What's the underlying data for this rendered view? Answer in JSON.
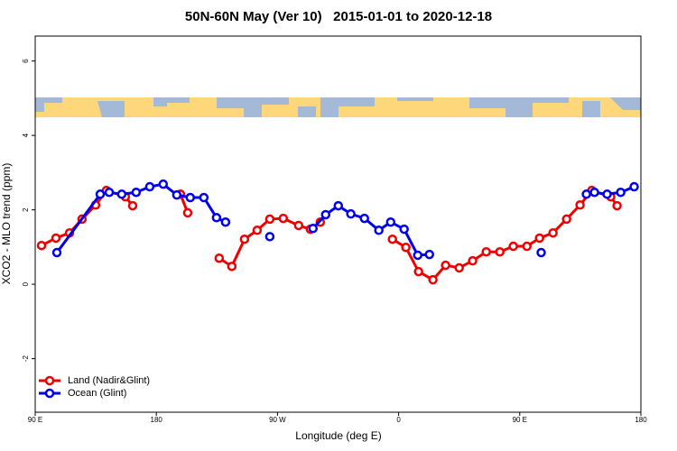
{
  "chart_data": {
    "type": "line",
    "title": "50N-60N May (Ver 10)   2015-01-01 to 2020-12-18",
    "x_label": "Longitude (deg E)",
    "y_label": "XCO2 - MLO trend (ppm)",
    "xlim": [
      90,
      540
    ],
    "ylim": [
      -3.44,
      6.67
    ],
    "xticks": [
      {
        "value": 90,
        "label": "90 E"
      },
      {
        "value": 180,
        "label": "180"
      },
      {
        "value": 270,
        "label": "90 W"
      },
      {
        "value": 360,
        "label": "0"
      },
      {
        "value": 450,
        "label": "90 E"
      },
      {
        "value": 540,
        "label": "180"
      }
    ],
    "yticks": [
      -2,
      0,
      2,
      4,
      6
    ],
    "legend_position": "bottom-left",
    "series": [
      {
        "name": "Land (Nadir&Glint)",
        "color": "#ee0000",
        "x": [
          94.7,
          105.4,
          115.5,
          124.8,
          134.9,
          142.9,
          157.0,
          162.4,
          null,
          197.9,
          203.3,
          null,
          226.7,
          236.1,
          245.5,
          254.9,
          264.3,
          274.3,
          285.7,
          294.4,
          301.8,
          null,
          355.4,
          365.4,
          374.8,
          385.5,
          394.9,
          405.0,
          415.0,
          425.1,
          435.2,
          445.2,
          455.3,
          464.7,
          474.7,
          484.8,
          494.8,
          503.5,
          517.6,
          522.3
        ],
        "values": [
          1.04,
          1.24,
          1.38,
          1.75,
          2.13,
          2.52,
          2.35,
          2.11,
          null,
          2.42,
          1.92,
          null,
          0.7,
          0.48,
          1.21,
          1.45,
          1.75,
          1.77,
          1.58,
          1.48,
          1.67,
          null,
          1.21,
          0.99,
          0.34,
          0.12,
          0.51,
          0.44,
          0.63,
          0.87,
          0.87,
          1.02,
          1.02,
          1.24,
          1.38,
          1.75,
          2.13,
          2.52,
          2.35,
          2.11
        ]
      },
      {
        "name": "Ocean (Glint)",
        "color": "#0000ee",
        "x": [
          106.1,
          138.3,
          145.0,
          154.3,
          165.0,
          175.1,
          185.1,
          195.2,
          205.2,
          215.3,
          224.7,
          231.4,
          null,
          264.3,
          null,
          296.4,
          305.8,
          315.2,
          324.5,
          334.6,
          345.3,
          354.1,
          364.1,
          374.2,
          382.9,
          null,
          465.9,
          null,
          499.5,
          505.5,
          514.9,
          525.0,
          535.0
        ],
        "values": [
          0.85,
          2.42,
          2.47,
          2.42,
          2.47,
          2.62,
          2.69,
          2.4,
          2.33,
          2.33,
          1.79,
          1.67,
          null,
          1.28,
          null,
          1.5,
          1.87,
          2.11,
          1.89,
          1.77,
          1.45,
          1.67,
          1.48,
          0.78,
          0.8,
          null,
          0.85,
          null,
          2.42,
          2.47,
          2.42,
          2.47,
          2.62
        ]
      }
    ]
  }
}
